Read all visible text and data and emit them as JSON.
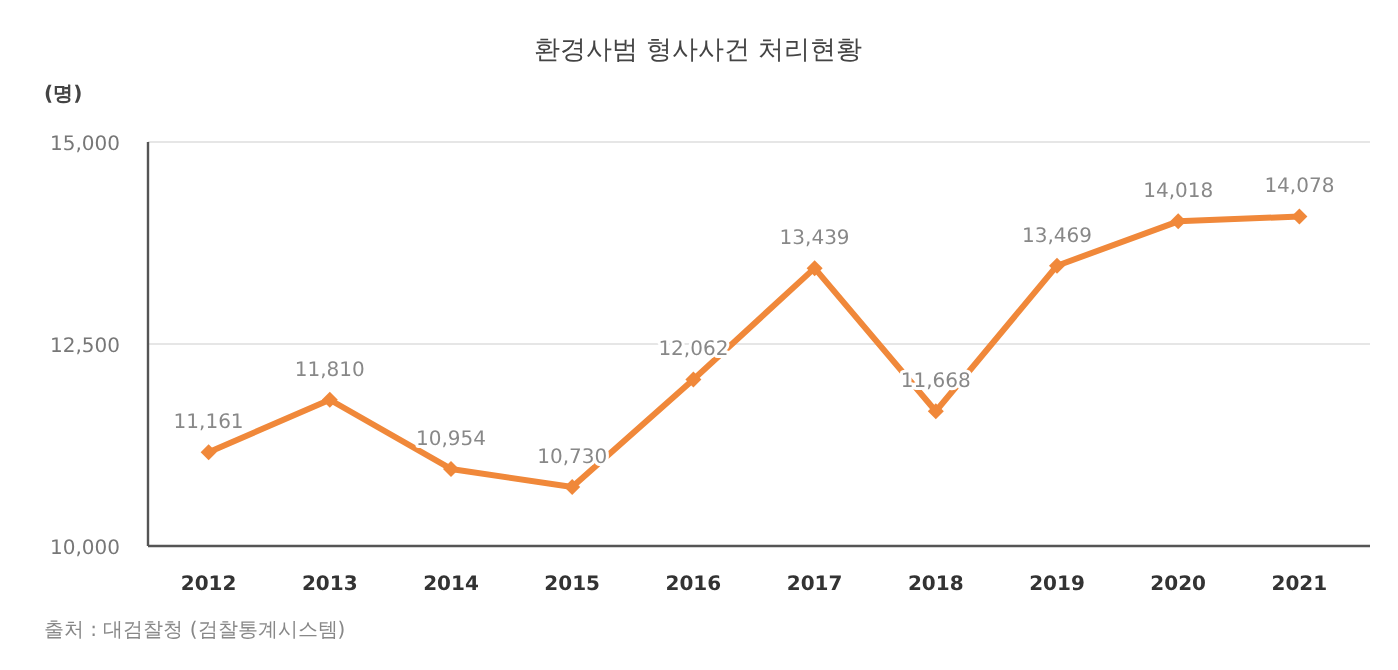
{
  "chart_data": {
    "type": "line",
    "title": "환경사범 형사사건 처리현황",
    "ylabel": "(명)",
    "annotations": [
      "출처 : 대검찰청 (검찰통계시스템)"
    ],
    "categories": [
      "2012",
      "2013",
      "2014",
      "2015",
      "2016",
      "2017",
      "2018",
      "2019",
      "2020",
      "2021"
    ],
    "series": [
      {
        "color": "#f0883a",
        "values": [
          11161,
          11810,
          10954,
          10730,
          12062,
          13439,
          11668,
          13469,
          14018,
          14078
        ],
        "value_labels": [
          "11,161",
          "11,810",
          "10,954",
          "10,730",
          "12,062",
          "13,439",
          "11,668",
          "13,469",
          "14,018",
          "14,078"
        ]
      }
    ],
    "ylim": [
      10000,
      15000
    ],
    "yticks": [
      {
        "value": 10000,
        "label": "10,000"
      },
      {
        "value": 12500,
        "label": "12,500"
      },
      {
        "value": 15000,
        "label": "15,000"
      }
    ],
    "grid": "y",
    "marker": "diamond"
  }
}
